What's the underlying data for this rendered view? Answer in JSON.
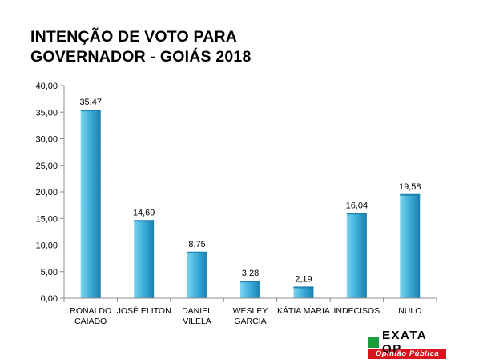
{
  "title": {
    "line1": "INTENÇÃO DE VOTO PARA",
    "line2": "GOVERNADOR - GOIÁS 2018"
  },
  "chart_data": {
    "type": "bar",
    "categories": [
      [
        "RONALDO",
        "CAIADO"
      ],
      [
        "JOSÉ ELITON"
      ],
      [
        "DANIEL",
        "VILELA"
      ],
      [
        "WESLEY",
        "GARCIA"
      ],
      [
        "KÁTIA MARIA"
      ],
      [
        "INDECISOS"
      ],
      [
        "NULO"
      ]
    ],
    "values": [
      35.47,
      14.69,
      8.75,
      3.28,
      2.19,
      16.04,
      19.58
    ],
    "value_labels": [
      "35,47",
      "14,69",
      "8,75",
      "3,28",
      "2,19",
      "16,04",
      "19,58"
    ],
    "ylim": [
      0,
      40
    ],
    "yticks": [
      0,
      5,
      10,
      15,
      20,
      25,
      30,
      35,
      40
    ],
    "ytick_labels": [
      "0,00",
      "5,00",
      "10,00",
      "15,00",
      "20,00",
      "25,00",
      "30,00",
      "35,00",
      "40,00"
    ],
    "grid": false,
    "colors": {
      "bar_light": "#7fd3ef",
      "bar_mid": "#3fb1dc",
      "bar_dark": "#1b7fae",
      "axis": "#8c8c8c"
    }
  },
  "logo": {
    "brand": "EXATA OP",
    "tagline": "Opinião Pública",
    "colors": {
      "mark": "#1a9b3c",
      "band": "#d8141c"
    }
  }
}
